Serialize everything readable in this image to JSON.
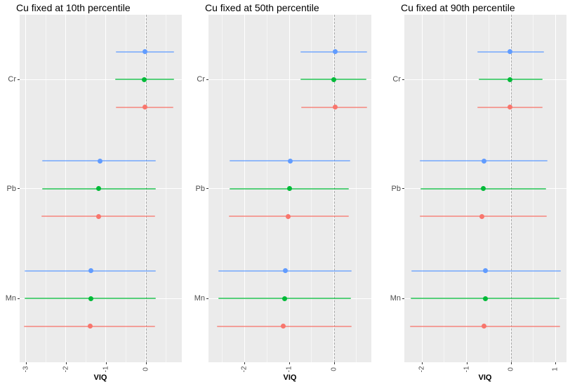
{
  "figure": {
    "background": "#FFFFFF",
    "panel_background": "#EBEBEB",
    "grid_major_color": "#FFFFFF",
    "axis_text_color": "#4D4D4D",
    "reference_line_color": "#A5A5A5"
  },
  "chart_data": {
    "type": "scatter",
    "subtype": "forest-plot-dot-interval",
    "xlabel": "VIQ",
    "categories": [
      "Cr",
      "Pb",
      "Mn"
    ],
    "reference_line_x": 0,
    "series_colors": {
      "blue": "#619CFF",
      "green": "#00BA38",
      "red": "#F8766D"
    },
    "grid": true,
    "legend": "none",
    "panels": [
      {
        "title": "Cu fixed at 10th percentile",
        "xlim": [
          -3.15,
          0.9
        ],
        "x_ticks": [
          -3,
          -2,
          -1,
          0
        ],
        "x_tick_labels": [
          "-3",
          "-2",
          "-1",
          "0"
        ],
        "rows": [
          {
            "category": "Cr",
            "color": "blue",
            "est": -0.02,
            "lo": -0.75,
            "hi": 0.7
          },
          {
            "category": "Cr",
            "color": "green",
            "est": -0.03,
            "lo": -0.76,
            "hi": 0.7
          },
          {
            "category": "Cr",
            "color": "red",
            "est": -0.02,
            "lo": -0.74,
            "hi": 0.69
          },
          {
            "category": "Pb",
            "color": "blue",
            "est": -1.15,
            "lo": -2.59,
            "hi": 0.26
          },
          {
            "category": "Pb",
            "color": "green",
            "est": -1.18,
            "lo": -2.59,
            "hi": 0.26
          },
          {
            "category": "Pb",
            "color": "red",
            "est": -1.18,
            "lo": -2.61,
            "hi": 0.24
          },
          {
            "category": "Mn",
            "color": "blue",
            "est": -1.37,
            "lo": -3.03,
            "hi": 0.26
          },
          {
            "category": "Mn",
            "color": "green",
            "est": -1.37,
            "lo": -3.03,
            "hi": 0.26
          },
          {
            "category": "Mn",
            "color": "red",
            "est": -1.39,
            "lo": -3.04,
            "hi": 0.24
          }
        ]
      },
      {
        "title": "Cu fixed at 50th percentile",
        "xlim": [
          -2.8,
          0.83
        ],
        "x_ticks": [
          -2,
          -1,
          0
        ],
        "x_tick_labels": [
          "-2",
          "-1",
          "0"
        ],
        "rows": [
          {
            "category": "Cr",
            "color": "blue",
            "est": 0.02,
            "lo": -0.75,
            "hi": 0.73
          },
          {
            "category": "Cr",
            "color": "green",
            "est": 0.0,
            "lo": -0.75,
            "hi": 0.72
          },
          {
            "category": "Cr",
            "color": "red",
            "est": 0.02,
            "lo": -0.73,
            "hi": 0.73
          },
          {
            "category": "Pb",
            "color": "blue",
            "est": -0.98,
            "lo": -2.33,
            "hi": 0.36
          },
          {
            "category": "Pb",
            "color": "green",
            "est": -1.0,
            "lo": -2.33,
            "hi": 0.33
          },
          {
            "category": "Pb",
            "color": "red",
            "est": -1.02,
            "lo": -2.34,
            "hi": 0.33
          },
          {
            "category": "Mn",
            "color": "blue",
            "est": -1.09,
            "lo": -2.58,
            "hi": 0.39
          },
          {
            "category": "Mn",
            "color": "green",
            "est": -1.11,
            "lo": -2.58,
            "hi": 0.38
          },
          {
            "category": "Mn",
            "color": "red",
            "est": -1.13,
            "lo": -2.61,
            "hi": 0.39
          }
        ]
      },
      {
        "title": "Cu fixed at 90th percentile",
        "xlim": [
          -2.4,
          1.25
        ],
        "x_ticks": [
          -2,
          -1,
          0,
          1
        ],
        "x_tick_labels": [
          "-2",
          "-1",
          "0",
          "1"
        ],
        "rows": [
          {
            "category": "Cr",
            "color": "blue",
            "est": -0.02,
            "lo": -0.76,
            "hi": 0.74
          },
          {
            "category": "Cr",
            "color": "green",
            "est": -0.02,
            "lo": -0.72,
            "hi": 0.71
          },
          {
            "category": "Cr",
            "color": "red",
            "est": -0.02,
            "lo": -0.76,
            "hi": 0.71
          },
          {
            "category": "Pb",
            "color": "blue",
            "est": -0.61,
            "lo": -2.05,
            "hi": 0.82
          },
          {
            "category": "Pb",
            "color": "green",
            "est": -0.63,
            "lo": -2.03,
            "hi": 0.79
          },
          {
            "category": "Pb",
            "color": "red",
            "est": -0.65,
            "lo": -2.06,
            "hi": 0.8
          },
          {
            "category": "Mn",
            "color": "blue",
            "est": -0.57,
            "lo": -2.24,
            "hi": 1.12
          },
          {
            "category": "Mn",
            "color": "green",
            "est": -0.58,
            "lo": -2.25,
            "hi": 1.09
          },
          {
            "category": "Mn",
            "color": "red",
            "est": -0.6,
            "lo": -2.28,
            "hi": 1.1
          }
        ]
      }
    ]
  }
}
